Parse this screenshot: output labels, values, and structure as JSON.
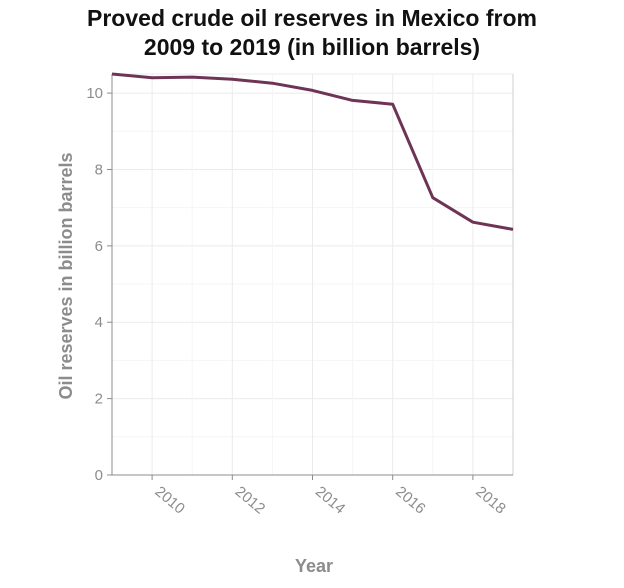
{
  "chart_data": {
    "type": "line",
    "title_line1": "Proved crude oil reserves in Mexico from",
    "title_line2": "2009 to 2019 (in billion barrels)",
    "xlabel": "Year",
    "ylabel": "Oil reserves in billion barrels",
    "x": [
      2009,
      2010,
      2011,
      2012,
      2013,
      2014,
      2015,
      2016,
      2017,
      2018,
      2019
    ],
    "series": [
      {
        "values": [
          10.5,
          10.4,
          10.42,
          10.36,
          10.26,
          10.07,
          9.81,
          9.71,
          7.26,
          6.62,
          6.43
        ]
      }
    ],
    "xlim": [
      2009,
      2019
    ],
    "ylim": [
      0,
      10.5
    ],
    "xticks": [
      2010,
      2012,
      2014,
      2016,
      2018
    ],
    "yticks": [
      0,
      2,
      4,
      6,
      8,
      10
    ],
    "grid": true,
    "line_color": "#6e3456"
  }
}
